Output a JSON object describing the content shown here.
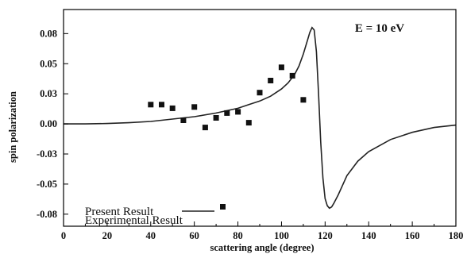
{
  "chart_data": {
    "type": "line",
    "xlabel": "scattering angle (degree)",
    "ylabel": "spin polarization",
    "xlim": [
      0,
      180
    ],
    "ylim": [
      -0.085,
      0.095
    ],
    "xticks": [
      "0",
      "20",
      "40",
      "60",
      "80",
      "100",
      "120",
      "140",
      "160",
      "180"
    ],
    "yticks": [
      "0.08",
      "0.05",
      "0.03",
      "0.00",
      "-0.03",
      "-0.05",
      "-0.08"
    ],
    "annotation": "E = 10 eV",
    "grid": false,
    "legend_position": "bottom-left",
    "series": [
      {
        "name": "Present Result",
        "kind": "line",
        "color": "#111111",
        "x": [
          0,
          10,
          20,
          30,
          40,
          50,
          60,
          70,
          75,
          80,
          85,
          90,
          95,
          100,
          103,
          106,
          108,
          110,
          112,
          113,
          114,
          115,
          116,
          117,
          118,
          119,
          120,
          121,
          122,
          123,
          124,
          126,
          128,
          130,
          135,
          140,
          150,
          160,
          170,
          180
        ],
        "y": [
          0.0,
          0.0,
          0.0003,
          0.001,
          0.002,
          0.004,
          0.006,
          0.009,
          0.011,
          0.013,
          0.016,
          0.019,
          0.023,
          0.029,
          0.034,
          0.041,
          0.048,
          0.058,
          0.07,
          0.076,
          0.08,
          0.078,
          0.06,
          0.025,
          -0.015,
          -0.045,
          -0.062,
          -0.068,
          -0.07,
          -0.069,
          -0.066,
          -0.059,
          -0.051,
          -0.043,
          -0.031,
          -0.023,
          -0.013,
          -0.007,
          -0.003,
          -0.001
        ]
      },
      {
        "name": "Experimental Result",
        "kind": "scatter",
        "color": "#111111",
        "x": [
          40,
          45,
          50,
          55,
          60,
          65,
          70,
          75,
          80,
          85,
          90,
          95,
          100,
          105,
          110
        ],
        "y": [
          0.016,
          0.016,
          0.013,
          0.003,
          0.014,
          -0.003,
          0.005,
          0.009,
          0.01,
          0.001,
          0.026,
          0.036,
          0.047,
          0.04,
          0.02
        ]
      }
    ]
  }
}
